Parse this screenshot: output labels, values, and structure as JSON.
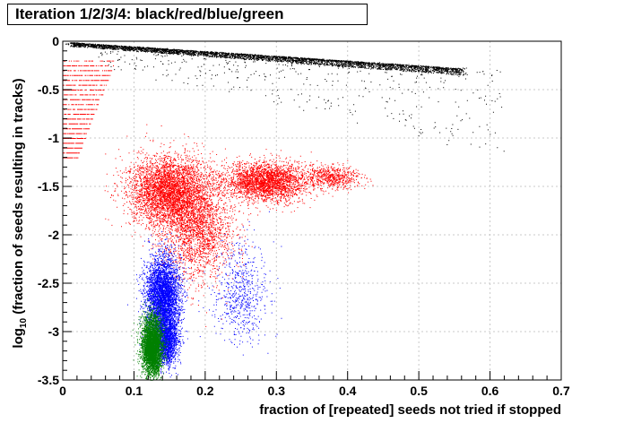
{
  "chart_data": {
    "type": "scatter",
    "title": "Iteration 1/2/3/4: black/red/blue/green",
    "xlabel": "fraction of [repeated] seeds not tried if stopped",
    "ylabel_main": "log",
    "ylabel_sub": "10",
    "ylabel_rest": " (fraction of seeds resulting in tracks)",
    "xlim": [
      0,
      0.7
    ],
    "ylim": [
      -3.5,
      0
    ],
    "grid": true,
    "x_ticks": [
      0,
      0.1,
      0.2,
      0.3,
      0.4,
      0.5,
      0.6,
      0.7
    ],
    "x_tick_labels": [
      "0",
      "0.1",
      "0.2",
      "0.3",
      "0.4",
      "0.5",
      "0.6",
      "0.7"
    ],
    "y_ticks": [
      0,
      -0.5,
      -1,
      -1.5,
      -2,
      -2.5,
      -3,
      -3.5
    ],
    "y_tick_labels": [
      "0",
      "-0.5",
      "-1",
      "-1.5",
      "-2",
      "-2.5",
      "-3",
      "-3.5"
    ],
    "series": [
      {
        "name": "",
        "color": "#000000",
        "clusters": [
          {
            "shape": "band",
            "x_from": 0.01,
            "x_to": 0.56,
            "y_top_from": -0.01,
            "y_top_to": -0.28,
            "y_bot_from": -0.05,
            "y_bot_to": -0.35,
            "density": 1.0
          },
          {
            "shape": "band",
            "x_from": 0.05,
            "x_to": 0.62,
            "y_top_from": -0.03,
            "y_top_to": -0.3,
            "y_bot_from": -0.25,
            "y_bot_to": -1.2,
            "density": 0.12
          }
        ]
      },
      {
        "name": "",
        "color": "#ff0000",
        "clusters": [
          {
            "shape": "blob",
            "cx": 0.15,
            "cy": -1.55,
            "sx": 0.028,
            "sy": 0.18,
            "density": 1.0
          },
          {
            "shape": "blob",
            "cx": 0.19,
            "cy": -1.95,
            "sx": 0.025,
            "sy": 0.25,
            "density": 0.5
          },
          {
            "shape": "blob",
            "cx": 0.285,
            "cy": -1.45,
            "sx": 0.03,
            "sy": 0.1,
            "density": 0.7
          },
          {
            "shape": "blob",
            "cx": 0.38,
            "cy": -1.4,
            "sx": 0.02,
            "sy": 0.06,
            "density": 0.15
          },
          {
            "shape": "streaks",
            "x_from": 0.0,
            "x_to": 0.09,
            "y_from": -0.2,
            "y_to": -1.2,
            "density": 0.3
          }
        ]
      },
      {
        "name": "",
        "color": "#0000ff",
        "clusters": [
          {
            "shape": "blob",
            "cx": 0.14,
            "cy": -2.65,
            "sx": 0.012,
            "sy": 0.22,
            "density": 1.0
          },
          {
            "shape": "blob",
            "cx": 0.145,
            "cy": -3.1,
            "sx": 0.008,
            "sy": 0.12,
            "density": 0.4
          },
          {
            "shape": "blob",
            "cx": 0.25,
            "cy": -2.6,
            "sx": 0.02,
            "sy": 0.25,
            "density": 0.15
          }
        ]
      },
      {
        "name": "",
        "color": "#008000",
        "clusters": [
          {
            "shape": "blob",
            "cx": 0.125,
            "cy": -3.15,
            "sx": 0.007,
            "sy": 0.15,
            "density": 1.0
          }
        ]
      }
    ]
  }
}
